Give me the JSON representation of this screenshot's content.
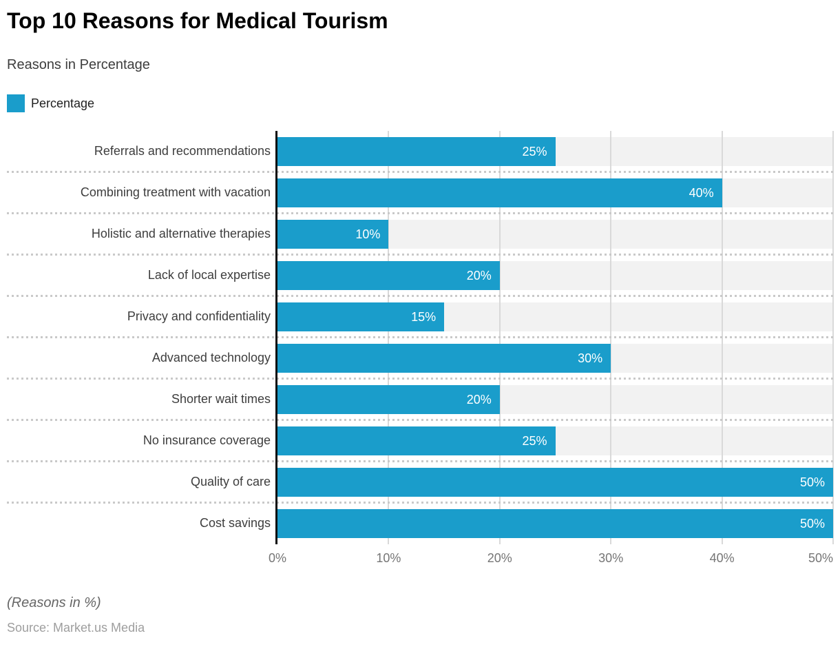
{
  "header": {
    "title": "Top 10 Reasons for Medical Tourism",
    "subtitle": "Reasons in Percentage",
    "legend_label": "Percentage"
  },
  "chart_data": {
    "type": "bar",
    "orientation": "horizontal",
    "title": "Top 10 Reasons for Medical Tourism",
    "subtitle": "Reasons in Percentage",
    "series_name": "Percentage",
    "categories": [
      "Referrals and recommendations",
      "Combining treatment with vacation",
      "Holistic and alternative therapies",
      "Lack of local expertise",
      "Privacy and confidentiality",
      "Advanced technology",
      "Shorter wait times",
      "No insurance coverage",
      "Quality of care",
      "Cost savings"
    ],
    "values": [
      25,
      40,
      10,
      20,
      15,
      30,
      20,
      25,
      50,
      50
    ],
    "value_labels": [
      "25%",
      "40%",
      "10%",
      "20%",
      "15%",
      "30%",
      "20%",
      "25%",
      "50%",
      "50%"
    ],
    "x_ticks": [
      "0%",
      "10%",
      "20%",
      "30%",
      "40%",
      "50%"
    ],
    "xlim": [
      0,
      50
    ],
    "xlabel": "",
    "ylabel": "",
    "grid": "vertical-solid-plus-dotted-row-separators",
    "legend_position": "top-left",
    "bar_color": "#1a9dcb",
    "track_color": "#f2f2f2",
    "gridline_color": "#d9d9d9",
    "axis_line_color": "#0b0b0b",
    "value_label_color": "#ffffff",
    "tick_label_color": "#757575"
  },
  "footer": {
    "note": "(Reasons in %)",
    "source": "Source: Market.us Media"
  }
}
